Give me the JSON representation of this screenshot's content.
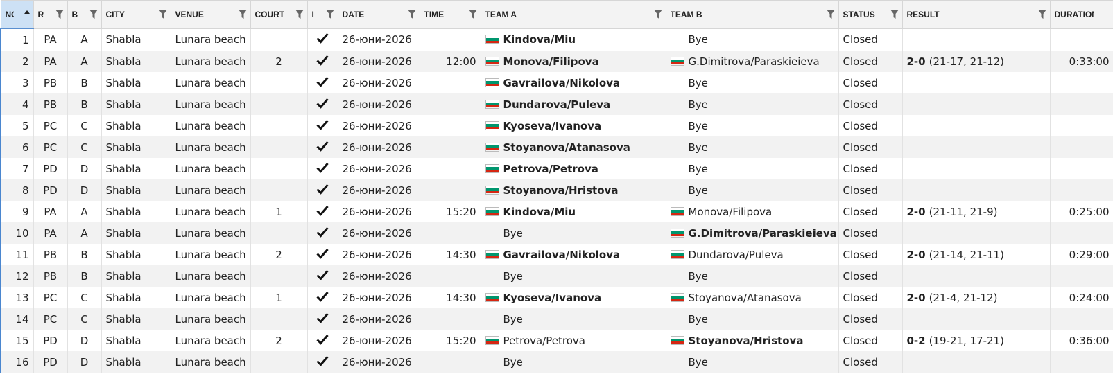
{
  "table": {
    "columns": [
      "NO",
      "R",
      "B",
      "CITY",
      "VENUE",
      "COURT",
      "I",
      "DATE",
      "TIME",
      "TEAM A",
      "TEAM B",
      "STATUS",
      "RESULT",
      "DURATION"
    ],
    "rows": [
      {
        "no": "1",
        "r": "PA",
        "b": "A",
        "city": "Shabla",
        "venue": "Lunara beach",
        "date": "26-юни-2026",
        "team_a": {
          "name": "Kindova/Miu",
          "flag": true
        },
        "team_b": {
          "name": "Bye"
        },
        "winner": "team_a",
        "status": "Closed"
      },
      {
        "no": "2",
        "r": "PA",
        "b": "A",
        "city": "Shabla",
        "venue": "Lunara beach",
        "court": "2",
        "date": "26-юни-2026",
        "time": "12:00",
        "team_a": {
          "name": "Monova/Filipova",
          "flag": true
        },
        "team_b": {
          "name": "G.Dimitrova/Paraskieieva",
          "flag": true
        },
        "winner": "team_a",
        "status": "Closed",
        "result": {
          "score": "2-0",
          "sets": "(21-17, 21-12)"
        },
        "duration": "0:33:00"
      },
      {
        "no": "3",
        "r": "PB",
        "b": "B",
        "city": "Shabla",
        "venue": "Lunara beach",
        "date": "26-юни-2026",
        "team_a": {
          "name": "Gavrailova/Nikolova",
          "flag": true
        },
        "team_b": {
          "name": "Bye"
        },
        "winner": "team_a",
        "status": "Closed"
      },
      {
        "no": "4",
        "r": "PB",
        "b": "B",
        "city": "Shabla",
        "venue": "Lunara beach",
        "date": "26-юни-2026",
        "team_a": {
          "name": "Dundarova/Puleva",
          "flag": true
        },
        "team_b": {
          "name": "Bye"
        },
        "winner": "team_a",
        "status": "Closed"
      },
      {
        "no": "5",
        "r": "PC",
        "b": "C",
        "city": "Shabla",
        "venue": "Lunara beach",
        "date": "26-юни-2026",
        "team_a": {
          "name": "Kyoseva/Ivanova",
          "flag": true
        },
        "team_b": {
          "name": "Bye"
        },
        "winner": "team_a",
        "status": "Closed"
      },
      {
        "no": "6",
        "r": "PC",
        "b": "C",
        "city": "Shabla",
        "venue": "Lunara beach",
        "date": "26-юни-2026",
        "team_a": {
          "name": "Stoyanova/Atanasova",
          "flag": true
        },
        "team_b": {
          "name": "Bye"
        },
        "winner": "team_a",
        "status": "Closed"
      },
      {
        "no": "7",
        "r": "PD",
        "b": "D",
        "city": "Shabla",
        "venue": "Lunara beach",
        "date": "26-юни-2026",
        "team_a": {
          "name": "Petrova/Petrova",
          "flag": true
        },
        "team_b": {
          "name": "Bye"
        },
        "winner": "team_a",
        "status": "Closed"
      },
      {
        "no": "8",
        "r": "PD",
        "b": "D",
        "city": "Shabla",
        "venue": "Lunara beach",
        "date": "26-юни-2026",
        "team_a": {
          "name": "Stoyanova/Hristova",
          "flag": true
        },
        "team_b": {
          "name": "Bye"
        },
        "winner": "team_a",
        "status": "Closed"
      },
      {
        "no": "9",
        "r": "PA",
        "b": "A",
        "city": "Shabla",
        "venue": "Lunara beach",
        "court": "1",
        "date": "26-юни-2026",
        "time": "15:20",
        "team_a": {
          "name": "Kindova/Miu",
          "flag": true
        },
        "team_b": {
          "name": "Monova/Filipova",
          "flag": true
        },
        "winner": "team_a",
        "status": "Closed",
        "result": {
          "score": "2-0",
          "sets": "(21-11, 21-9)"
        },
        "duration": "0:25:00"
      },
      {
        "no": "10",
        "r": "PA",
        "b": "A",
        "city": "Shabla",
        "venue": "Lunara beach",
        "date": "26-юни-2026",
        "team_a": {
          "name": "Bye"
        },
        "team_b": {
          "name": "G.Dimitrova/Paraskieieva",
          "flag": true
        },
        "winner": "team_b",
        "status": "Closed"
      },
      {
        "no": "11",
        "r": "PB",
        "b": "B",
        "city": "Shabla",
        "venue": "Lunara beach",
        "court": "2",
        "date": "26-юни-2026",
        "time": "14:30",
        "team_a": {
          "name": "Gavrailova/Nikolova",
          "flag": true
        },
        "team_b": {
          "name": "Dundarova/Puleva",
          "flag": true
        },
        "winner": "team_a",
        "status": "Closed",
        "result": {
          "score": "2-0",
          "sets": "(21-14, 21-11)"
        },
        "duration": "0:29:00"
      },
      {
        "no": "12",
        "r": "PB",
        "b": "B",
        "city": "Shabla",
        "venue": "Lunara beach",
        "date": "26-юни-2026",
        "team_a": {
          "name": "Bye"
        },
        "team_b": {
          "name": "Bye"
        },
        "status": "Closed"
      },
      {
        "no": "13",
        "r": "PC",
        "b": "C",
        "city": "Shabla",
        "venue": "Lunara beach",
        "court": "1",
        "date": "26-юни-2026",
        "time": "14:30",
        "team_a": {
          "name": "Kyoseva/Ivanova",
          "flag": true
        },
        "team_b": {
          "name": "Stoyanova/Atanasova",
          "flag": true
        },
        "winner": "team_a",
        "status": "Closed",
        "result": {
          "score": "2-0",
          "sets": "(21-4, 21-12)"
        },
        "duration": "0:24:00"
      },
      {
        "no": "14",
        "r": "PC",
        "b": "C",
        "city": "Shabla",
        "venue": "Lunara beach",
        "date": "26-юни-2026",
        "team_a": {
          "name": "Bye"
        },
        "team_b": {
          "name": "Bye"
        },
        "status": "Closed"
      },
      {
        "no": "15",
        "r": "PD",
        "b": "D",
        "city": "Shabla",
        "venue": "Lunara beach",
        "court": "2",
        "date": "26-юни-2026",
        "time": "15:20",
        "team_a": {
          "name": "Petrova/Petrova",
          "flag": true
        },
        "team_b": {
          "name": "Stoyanova/Hristova",
          "flag": true
        },
        "winner": "team_b",
        "status": "Closed",
        "result": {
          "score": "0-2",
          "sets": "(19-21, 17-21)"
        },
        "duration": "0:36:00"
      },
      {
        "no": "16",
        "r": "PD",
        "b": "D",
        "city": "Shabla",
        "venue": "Lunara beach",
        "date": "26-юни-2026",
        "team_a": {
          "name": "Bye"
        },
        "team_b": {
          "name": "Bye"
        },
        "status": "Closed"
      }
    ]
  }
}
